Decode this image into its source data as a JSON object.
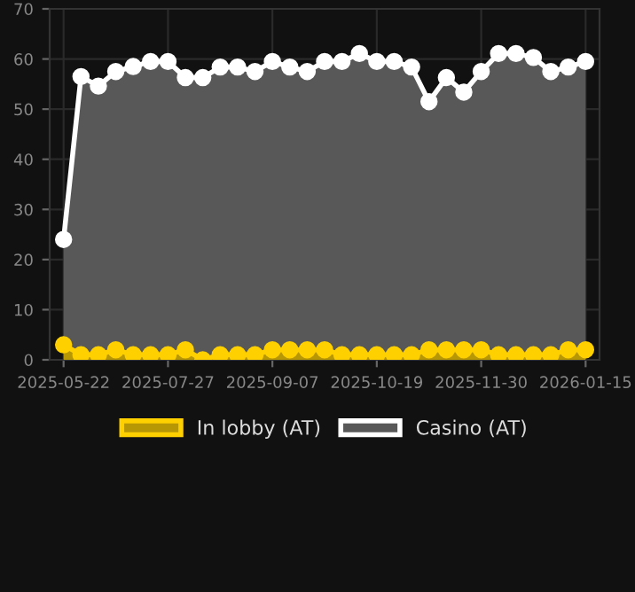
{
  "chart_data": {
    "type": "area",
    "categories": [
      "2025-05-22",
      null,
      null,
      null,
      null,
      null,
      "2025-07-27",
      null,
      null,
      null,
      null,
      null,
      "2025-09-07",
      null,
      null,
      null,
      null,
      null,
      "2025-10-19",
      null,
      null,
      null,
      null,
      null,
      "2025-11-30",
      null,
      null,
      null,
      null,
      null,
      "2026-01-15"
    ],
    "series": [
      {
        "name": "In lobby (AT)",
        "color": "#ffd000",
        "values": [
          3,
          1,
          1,
          2,
          1,
          1,
          1,
          2,
          0,
          1,
          1,
          1,
          2,
          2,
          2,
          2,
          1,
          1,
          1,
          1,
          1,
          2,
          2,
          2,
          2,
          1,
          1,
          1,
          1,
          2,
          2
        ]
      },
      {
        "name": "Casino (AT)",
        "color": "#ffffff",
        "values": [
          24,
          56.5,
          54.6,
          57.5,
          58.5,
          59.5,
          59.5,
          56.3,
          56.3,
          58.4,
          58.4,
          57.5,
          59.5,
          58.4,
          57.5,
          59.5,
          59.5,
          61.1,
          59.5,
          59.5,
          58.4,
          51.5,
          56.3,
          53.4,
          57.5,
          61.1,
          61.1,
          60.3,
          57.5,
          58.4,
          59.5
        ]
      }
    ],
    "ylim": [
      0,
      70
    ],
    "yticks": [
      0,
      10,
      20,
      30,
      40,
      50,
      60,
      70
    ],
    "grid": true,
    "legend": "bottom",
    "marker": "circle",
    "line_style": "solid"
  }
}
